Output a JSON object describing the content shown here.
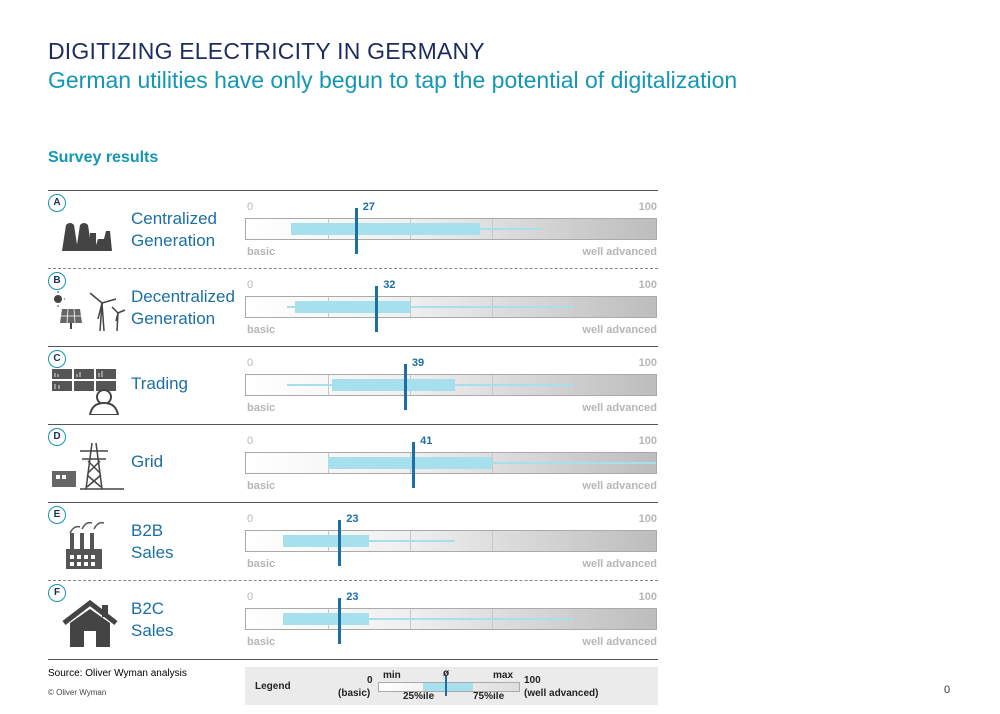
{
  "header": {
    "title": "DIGITIZING ELECTRICITY IN GERMANY",
    "subtitle": "German utilities have only begun to tap the potential of digitalization",
    "section": "Survey results"
  },
  "scale_labels": {
    "min": "0",
    "max": "100",
    "low": "basic",
    "high": "well advanced"
  },
  "colors": {
    "accent": "#1497b3",
    "navy": "#1c2c5f",
    "bar": "#a6e0ec",
    "mean": "#1c6fa5"
  },
  "chart_data": {
    "type": "box",
    "title": "Survey results",
    "xlim": [
      0,
      100
    ],
    "xlabel_low": "basic",
    "xlabel_high": "well advanced",
    "categories": [
      {
        "badge": "A",
        "name_lines": [
          "Centralized",
          "Generation"
        ],
        "icon": "power-plant-icon",
        "min": 11,
        "q1": 11,
        "q3": 57,
        "max": 72,
        "mean": 27
      },
      {
        "badge": "B",
        "name_lines": [
          "Decentralized",
          "Generation"
        ],
        "icon": "solar-wind-icon",
        "min": 10,
        "q1": 12,
        "q3": 40,
        "max": 80,
        "mean": 32
      },
      {
        "badge": "C",
        "name_lines": [
          "Trading"
        ],
        "icon": "trading-desk-icon",
        "min": 10,
        "q1": 21,
        "q3": 51,
        "max": 80,
        "mean": 39
      },
      {
        "badge": "D",
        "name_lines": [
          "Grid"
        ],
        "icon": "transmission-tower-icon",
        "min": 20,
        "q1": 20,
        "q3": 60,
        "max": 100,
        "mean": 41
      },
      {
        "badge": "E",
        "name_lines": [
          "B2B",
          "Sales"
        ],
        "icon": "factory-icon",
        "min": 9,
        "q1": 9,
        "q3": 30,
        "max": 51,
        "mean": 23
      },
      {
        "badge": "F",
        "name_lines": [
          "B2C",
          "Sales"
        ],
        "icon": "house-icon",
        "min": 9,
        "q1": 9,
        "q3": 30,
        "max": 80,
        "mean": 23
      }
    ]
  },
  "footer": {
    "source": "Source: Oliver Wyman analysis",
    "copyright": "© Oliver Wyman",
    "page_number": "0"
  },
  "legend": {
    "title": "Legend",
    "zero": "0",
    "basic": "(basic)",
    "min": "min",
    "mean": "ø",
    "max": "max",
    "hundred": "100",
    "advanced": "(well advanced)",
    "p25": "25%ile",
    "p75": "75%ile"
  }
}
